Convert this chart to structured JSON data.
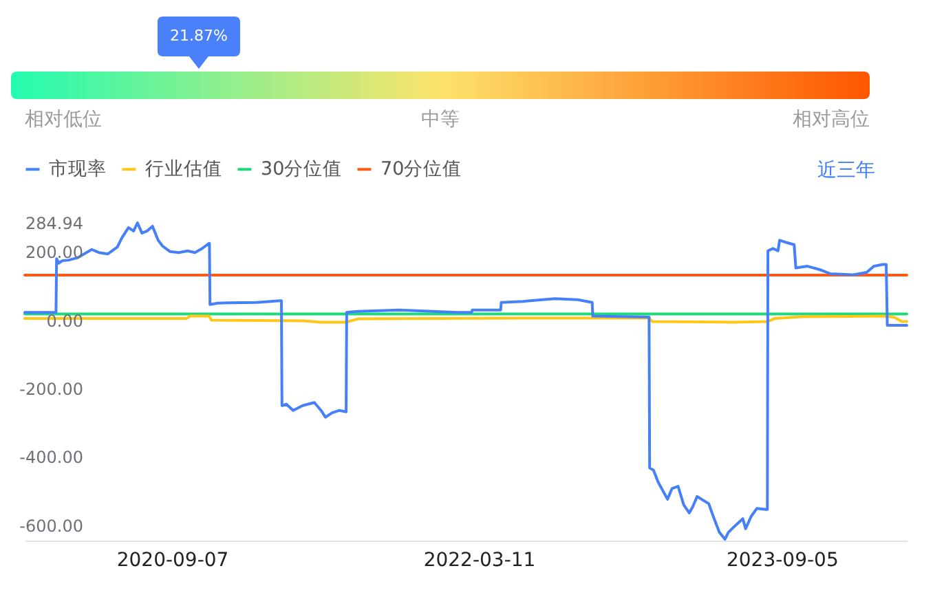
{
  "chart_data": [
    {
      "type": "other",
      "annotations": [
        "相对低位",
        "中等",
        "相对高位"
      ],
      "values": [
        21.87
      ],
      "value_labels": [
        "21.87%"
      ],
      "color": "#4a80fa"
    },
    {
      "type": "line",
      "legend": "top left",
      "annotations": [
        "近三年"
      ],
      "xlim": [
        "2019-12-18",
        "2024-04-16"
      ],
      "xticks": [
        "2020-09-07",
        "2022-03-11",
        "2023-09-05"
      ],
      "ylim": [
        -645,
        284.94
      ],
      "yticks": [
        284.94,
        {
          "value": 200,
          "label": "200.00"
        },
        {
          "value": 0,
          "label": "0.00"
        },
        {
          "value": -200,
          "label": "-200.00"
        },
        {
          "value": -400,
          "label": "-400.00"
        },
        {
          "value": -600,
          "label": "-600.00"
        }
      ],
      "series": [
        {
          "name": "市现率",
          "color": "#4680f8",
          "x": [
            "2019-12-18",
            "2020-02-12",
            "2020-02-13",
            "2020-02-17",
            "2020-02-23",
            "2020-03-06",
            "2020-03-22",
            "2020-04-16",
            "2020-04-29",
            "2020-05-15",
            "2020-06-01",
            "2020-06-09",
            "2020-06-21",
            "2020-06-30",
            "2020-07-07",
            "2020-07-15",
            "2020-07-24",
            "2020-08-03",
            "2020-08-13",
            "2020-08-21",
            "2020-09-03",
            "2020-09-19",
            "2020-10-05",
            "2020-10-18",
            "2020-10-31",
            "2020-11-12",
            "2020-11-13",
            "2020-11-14",
            "2020-11-28",
            "2020-12-18",
            "2021-02-06",
            "2021-03-19",
            "2021-03-22",
            "2021-03-23",
            "2021-03-31",
            "2021-04-12",
            "2021-04-29",
            "2021-05-20",
            "2021-06-01",
            "2021-06-09",
            "2021-06-21",
            "2021-07-04",
            "2021-07-16",
            "2021-07-17",
            "2021-08-06",
            "2021-10-19",
            "2022-02-02",
            "2022-02-26",
            "2022-02-27",
            "2022-04-19",
            "2022-04-20",
            "2022-05-29",
            "2022-07-25",
            "2022-09-04",
            "2022-09-30",
            "2022-10-01",
            "2023-01-10",
            "2023-01-11",
            "2023-01-18",
            "2023-01-26",
            "2023-02-12",
            "2023-02-20",
            "2023-03-03",
            "2023-03-13",
            "2023-03-23",
            "2023-03-29",
            "2023-04-06",
            "2023-04-27",
            "2023-05-05",
            "2023-05-16",
            "2023-05-26",
            "2023-06-01",
            "2023-06-11",
            "2023-06-27",
            "2023-07-02",
            "2023-07-12",
            "2023-07-22",
            "2023-08-08",
            "2023-08-10",
            "2023-08-11",
            "2023-08-20",
            "2023-08-29",
            "2023-09-01",
            "2023-09-14",
            "2023-09-27",
            "2023-09-30",
            "2023-10-21",
            "2023-11-14",
            "2023-12-01",
            "2024-01-11",
            "2024-02-04",
            "2024-02-17",
            "2024-03-04",
            "2024-03-10",
            "2024-03-12",
            "2024-04-16"
          ],
          "values": [
            23,
            23,
            180,
            167,
            174,
            176,
            183,
            207,
            198,
            194,
            214,
            241,
            271,
            261,
            284.94,
            255,
            261,
            275,
            234,
            217,
            201,
            198,
            203,
            198,
            210,
            225,
            225,
            46,
            50,
            51,
            52,
            57,
            57,
            -250,
            -246,
            -264,
            -250,
            -241,
            -264,
            -284,
            -271,
            -264,
            -268,
            23,
            26,
            30,
            23,
            23,
            30,
            30,
            52,
            55,
            63,
            60,
            52,
            12,
            9,
            -432,
            -439,
            -473,
            -524,
            -493,
            -486,
            -540,
            -564,
            -547,
            -516,
            -537,
            -574,
            -621,
            -641,
            -621,
            -605,
            -581,
            -610,
            -574,
            -551,
            -554,
            -554,
            203,
            210,
            203,
            234,
            227,
            221,
            153,
            158,
            147,
            136,
            133,
            140,
            158,
            163,
            163,
            -15,
            -15
          ]
        },
        {
          "name": "行业估值",
          "color": "#ffc61a",
          "x": [
            "2019-12-18",
            "2020-10-03",
            "2020-10-09",
            "2020-11-12",
            "2020-11-17",
            "2021-05-01",
            "2021-06-01",
            "2021-07-16",
            "2021-08-06",
            "2022-06-01",
            "2023-01-10",
            "2023-01-16",
            "2023-06-15",
            "2023-08-10",
            "2023-08-23",
            "2023-10-12",
            "2024-03-07",
            "2024-03-25",
            "2024-04-07",
            "2024-04-16"
          ],
          "values": [
            5,
            5,
            12,
            12,
            0,
            -2,
            -6,
            -6,
            4,
            6,
            6,
            -4,
            -6,
            -4,
            5,
            10,
            12,
            8,
            -4,
            -4
          ]
        },
        {
          "name": "30分位值",
          "color": "#1ed97a",
          "x": [
            "2019-12-18",
            "2024-04-16"
          ],
          "values": [
            18,
            18
          ]
        },
        {
          "name": "70分位值",
          "color": "#ff5b14",
          "x": [
            "2019-12-18",
            "2024-04-16"
          ],
          "values": [
            132,
            132
          ]
        }
      ]
    }
  ]
}
